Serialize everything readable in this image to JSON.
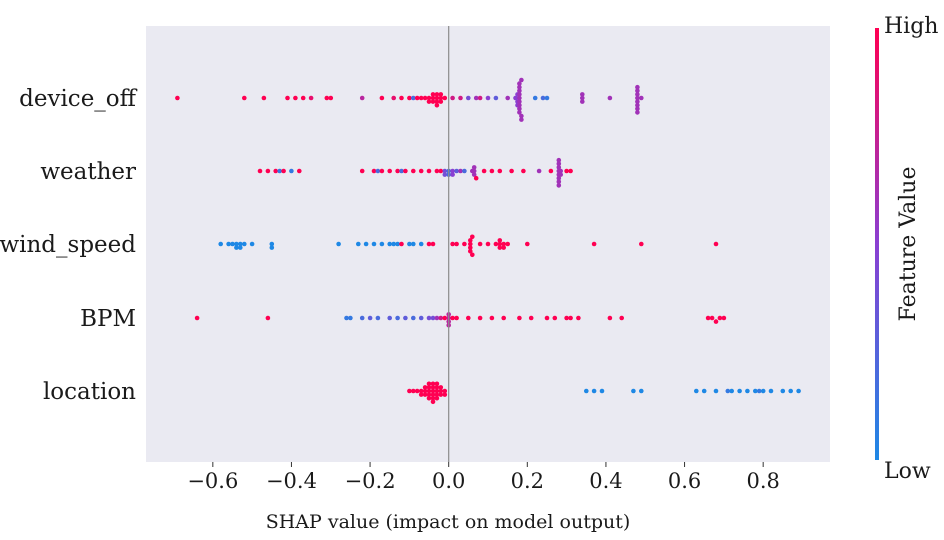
{
  "chart_data": {
    "type": "scatter",
    "subtype": "shap-beeswarm",
    "title": "",
    "xlabel": "SHAP value (impact on model output)",
    "ylabel": "",
    "xlim": [
      -0.77,
      0.97
    ],
    "xticks": [
      -0.6,
      -0.4,
      -0.2,
      0.0,
      0.2,
      0.4,
      0.6,
      0.8
    ],
    "xtick_labels": [
      "−0.6",
      "−0.4",
      "−0.2",
      "0.0",
      "0.2",
      "0.4",
      "0.6",
      "0.8"
    ],
    "features": [
      "device_off",
      "weather",
      "wind_speed",
      "BPM",
      "location"
    ],
    "feature_labels": [
      "device_off",
      "weather",
      "wind_speed",
      "BPM",
      "location"
    ],
    "zero_line": 0.0,
    "grid": false,
    "background": "#eaeaf2",
    "colors": {
      "low": "#1e88e5",
      "high": "#ff0052",
      "mid": "#8a3fd2",
      "zero_line": "#8c8c8c"
    },
    "colorbar": {
      "label": "Feature Value",
      "high_label": "High",
      "low_label": "Low",
      "position": "right"
    },
    "series": [
      {
        "feature": "device_off",
        "points": [
          {
            "x": -0.69,
            "v": 1
          },
          {
            "x": -0.52,
            "v": 1
          },
          {
            "x": -0.47,
            "v": 1
          },
          {
            "x": -0.41,
            "v": 1
          },
          {
            "x": -0.39,
            "v": 1
          },
          {
            "x": -0.37,
            "v": 1
          },
          {
            "x": -0.35,
            "v": 0.9
          },
          {
            "x": -0.31,
            "v": 1
          },
          {
            "x": -0.3,
            "v": 1
          },
          {
            "x": -0.22,
            "v": 0.7
          },
          {
            "x": -0.17,
            "v": 1
          },
          {
            "x": -0.14,
            "v": 0.9
          },
          {
            "x": -0.12,
            "v": 1
          },
          {
            "x": -0.1,
            "v": 1
          },
          {
            "x": -0.09,
            "v": 0.2
          },
          {
            "x": -0.08,
            "v": 1
          },
          {
            "x": -0.07,
            "v": 1
          },
          {
            "x": -0.06,
            "v": 1
          },
          {
            "x": -0.05,
            "v": 1
          },
          {
            "x": -0.05,
            "v": 1
          },
          {
            "x": -0.04,
            "v": 1
          },
          {
            "x": -0.04,
            "v": 1
          },
          {
            "x": -0.04,
            "v": 1
          },
          {
            "x": -0.03,
            "v": 1
          },
          {
            "x": -0.03,
            "v": 1
          },
          {
            "x": -0.03,
            "v": 1
          },
          {
            "x": -0.03,
            "v": 1
          },
          {
            "x": -0.02,
            "v": 1
          },
          {
            "x": -0.02,
            "v": 1
          },
          {
            "x": -0.02,
            "v": 1
          },
          {
            "x": -0.01,
            "v": 1
          },
          {
            "x": 0.01,
            "v": 0.8
          },
          {
            "x": 0.03,
            "v": 0.8
          },
          {
            "x": 0.05,
            "v": 0.4
          },
          {
            "x": 0.07,
            "v": 0.6
          },
          {
            "x": 0.08,
            "v": 0.8
          },
          {
            "x": 0.1,
            "v": 0.5
          },
          {
            "x": 0.12,
            "v": 0.3
          },
          {
            "x": 0.15,
            "v": 0.6
          },
          {
            "x": 0.17,
            "v": 0.5
          },
          {
            "x": 0.175,
            "v": 0.5
          },
          {
            "x": 0.175,
            "v": 0.5
          },
          {
            "x": 0.175,
            "v": 0.5
          },
          {
            "x": 0.18,
            "v": 0.6
          },
          {
            "x": 0.18,
            "v": 0.6
          },
          {
            "x": 0.18,
            "v": 0.6
          },
          {
            "x": 0.18,
            "v": 0.6
          },
          {
            "x": 0.18,
            "v": 0.6
          },
          {
            "x": 0.18,
            "v": 0.6
          },
          {
            "x": 0.18,
            "v": 0.6
          },
          {
            "x": 0.18,
            "v": 0.6
          },
          {
            "x": 0.18,
            "v": 0.6
          },
          {
            "x": 0.185,
            "v": 0.6
          },
          {
            "x": 0.185,
            "v": 0.6
          },
          {
            "x": 0.185,
            "v": 0.6
          },
          {
            "x": 0.22,
            "v": 0.1
          },
          {
            "x": 0.24,
            "v": 0.2
          },
          {
            "x": 0.25,
            "v": 0.1
          },
          {
            "x": 0.34,
            "v": 0.6
          },
          {
            "x": 0.34,
            "v": 0.6
          },
          {
            "x": 0.34,
            "v": 0.6
          },
          {
            "x": 0.41,
            "v": 0.6
          },
          {
            "x": 0.48,
            "v": 0.6
          },
          {
            "x": 0.48,
            "v": 0.6
          },
          {
            "x": 0.48,
            "v": 0.6
          },
          {
            "x": 0.48,
            "v": 0.6
          },
          {
            "x": 0.48,
            "v": 0.6
          },
          {
            "x": 0.48,
            "v": 0.6
          },
          {
            "x": 0.48,
            "v": 0.6
          },
          {
            "x": 0.48,
            "v": 0.6
          },
          {
            "x": 0.49,
            "v": 0.6
          }
        ]
      },
      {
        "feature": "weather",
        "points": [
          {
            "x": -0.48,
            "v": 1
          },
          {
            "x": -0.46,
            "v": 1
          },
          {
            "x": -0.44,
            "v": 1
          },
          {
            "x": -0.43,
            "v": 0.1
          },
          {
            "x": -0.42,
            "v": 1
          },
          {
            "x": -0.4,
            "v": 0.1
          },
          {
            "x": -0.38,
            "v": 1
          },
          {
            "x": -0.22,
            "v": 1
          },
          {
            "x": -0.19,
            "v": 1
          },
          {
            "x": -0.18,
            "v": 0.2
          },
          {
            "x": -0.17,
            "v": 1
          },
          {
            "x": -0.15,
            "v": 1
          },
          {
            "x": -0.13,
            "v": 1
          },
          {
            "x": -0.12,
            "v": 0.2
          },
          {
            "x": -0.11,
            "v": 1
          },
          {
            "x": -0.09,
            "v": 1
          },
          {
            "x": -0.07,
            "v": 1
          },
          {
            "x": -0.05,
            "v": 1
          },
          {
            "x": -0.03,
            "v": 1
          },
          {
            "x": -0.02,
            "v": 1
          },
          {
            "x": -0.01,
            "v": 0.4
          },
          {
            "x": -0.01,
            "v": 0.4
          },
          {
            "x": 0.0,
            "v": 0.2
          },
          {
            "x": 0.0,
            "v": 0.2
          },
          {
            "x": 0.01,
            "v": 0.5
          },
          {
            "x": 0.01,
            "v": 0.5
          },
          {
            "x": 0.02,
            "v": 0.3
          },
          {
            "x": 0.03,
            "v": 0.6
          },
          {
            "x": 0.04,
            "v": 0.2
          },
          {
            "x": 0.06,
            "v": 0.6
          },
          {
            "x": 0.065,
            "v": 0.6
          },
          {
            "x": 0.065,
            "v": 0.6
          },
          {
            "x": 0.065,
            "v": 0.6
          },
          {
            "x": 0.07,
            "v": 1
          },
          {
            "x": 0.09,
            "v": 1
          },
          {
            "x": 0.11,
            "v": 1
          },
          {
            "x": 0.13,
            "v": 1
          },
          {
            "x": 0.16,
            "v": 1
          },
          {
            "x": 0.19,
            "v": 1
          },
          {
            "x": 0.23,
            "v": 0.6
          },
          {
            "x": 0.26,
            "v": 1
          },
          {
            "x": 0.28,
            "v": 0.6
          },
          {
            "x": 0.28,
            "v": 0.6
          },
          {
            "x": 0.28,
            "v": 0.6
          },
          {
            "x": 0.28,
            "v": 0.6
          },
          {
            "x": 0.28,
            "v": 0.6
          },
          {
            "x": 0.28,
            "v": 0.6
          },
          {
            "x": 0.28,
            "v": 0.6
          },
          {
            "x": 0.28,
            "v": 0.6
          },
          {
            "x": 0.285,
            "v": 0.6
          },
          {
            "x": 0.285,
            "v": 0.6
          },
          {
            "x": 0.3,
            "v": 1
          },
          {
            "x": 0.31,
            "v": 1
          }
        ]
      },
      {
        "feature": "wind_speed",
        "points": [
          {
            "x": -0.58,
            "v": 0
          },
          {
            "x": -0.56,
            "v": 0
          },
          {
            "x": -0.55,
            "v": 0
          },
          {
            "x": -0.54,
            "v": 0
          },
          {
            "x": -0.54,
            "v": 0
          },
          {
            "x": -0.53,
            "v": 0
          },
          {
            "x": -0.53,
            "v": 0
          },
          {
            "x": -0.52,
            "v": 0
          },
          {
            "x": -0.5,
            "v": 0
          },
          {
            "x": -0.45,
            "v": 0
          },
          {
            "x": -0.45,
            "v": 0
          },
          {
            "x": -0.28,
            "v": 0
          },
          {
            "x": -0.23,
            "v": 0
          },
          {
            "x": -0.21,
            "v": 0
          },
          {
            "x": -0.19,
            "v": 0
          },
          {
            "x": -0.17,
            "v": 0
          },
          {
            "x": -0.15,
            "v": 0
          },
          {
            "x": -0.14,
            "v": 0
          },
          {
            "x": -0.13,
            "v": 0
          },
          {
            "x": -0.12,
            "v": 1
          },
          {
            "x": -0.1,
            "v": 0
          },
          {
            "x": -0.09,
            "v": 0
          },
          {
            "x": -0.07,
            "v": 0
          },
          {
            "x": -0.05,
            "v": 1
          },
          {
            "x": -0.04,
            "v": 1
          },
          {
            "x": 0.01,
            "v": 1
          },
          {
            "x": 0.02,
            "v": 1
          },
          {
            "x": 0.04,
            "v": 1
          },
          {
            "x": 0.055,
            "v": 1
          },
          {
            "x": 0.055,
            "v": 1
          },
          {
            "x": 0.055,
            "v": 1
          },
          {
            "x": 0.055,
            "v": 1
          },
          {
            "x": 0.06,
            "v": 1
          },
          {
            "x": 0.06,
            "v": 1
          },
          {
            "x": 0.08,
            "v": 1
          },
          {
            "x": 0.1,
            "v": 1
          },
          {
            "x": 0.12,
            "v": 1
          },
          {
            "x": 0.13,
            "v": 1
          },
          {
            "x": 0.13,
            "v": 1
          },
          {
            "x": 0.13,
            "v": 1
          },
          {
            "x": 0.14,
            "v": 1
          },
          {
            "x": 0.14,
            "v": 1
          },
          {
            "x": 0.15,
            "v": 1
          },
          {
            "x": 0.2,
            "v": 1
          },
          {
            "x": 0.37,
            "v": 1
          },
          {
            "x": 0.49,
            "v": 1
          },
          {
            "x": 0.68,
            "v": 1
          }
        ]
      },
      {
        "feature": "BPM",
        "points": [
          {
            "x": -0.64,
            "v": 1
          },
          {
            "x": -0.46,
            "v": 1
          },
          {
            "x": -0.26,
            "v": 0.1
          },
          {
            "x": -0.25,
            "v": 0.1
          },
          {
            "x": -0.22,
            "v": 0.2
          },
          {
            "x": -0.2,
            "v": 0.3
          },
          {
            "x": -0.18,
            "v": 0.2
          },
          {
            "x": -0.15,
            "v": 0.3
          },
          {
            "x": -0.13,
            "v": 0.2
          },
          {
            "x": -0.11,
            "v": 0.3
          },
          {
            "x": -0.09,
            "v": 0.2
          },
          {
            "x": -0.07,
            "v": 0.3
          },
          {
            "x": -0.05,
            "v": 0.4
          },
          {
            "x": -0.04,
            "v": 0.4
          },
          {
            "x": -0.03,
            "v": 0.6
          },
          {
            "x": -0.02,
            "v": 0.8
          },
          {
            "x": -0.01,
            "v": 1
          },
          {
            "x": 0.0,
            "v": 0.7
          },
          {
            "x": 0.0,
            "v": 0.7
          },
          {
            "x": 0.0,
            "v": 0.7
          },
          {
            "x": 0.0,
            "v": 0.7
          },
          {
            "x": 0.01,
            "v": 1
          },
          {
            "x": 0.02,
            "v": 1
          },
          {
            "x": 0.05,
            "v": 1
          },
          {
            "x": 0.08,
            "v": 1
          },
          {
            "x": 0.11,
            "v": 1
          },
          {
            "x": 0.14,
            "v": 1
          },
          {
            "x": 0.18,
            "v": 1
          },
          {
            "x": 0.21,
            "v": 1
          },
          {
            "x": 0.25,
            "v": 1
          },
          {
            "x": 0.27,
            "v": 1
          },
          {
            "x": 0.3,
            "v": 1
          },
          {
            "x": 0.31,
            "v": 1
          },
          {
            "x": 0.33,
            "v": 1
          },
          {
            "x": 0.41,
            "v": 1
          },
          {
            "x": 0.44,
            "v": 1
          },
          {
            "x": 0.66,
            "v": 1
          },
          {
            "x": 0.67,
            "v": 1
          },
          {
            "x": 0.68,
            "v": 1
          },
          {
            "x": 0.69,
            "v": 1
          },
          {
            "x": 0.7,
            "v": 1
          }
        ]
      },
      {
        "feature": "location",
        "points": [
          {
            "x": -0.1,
            "v": 1
          },
          {
            "x": -0.09,
            "v": 1
          },
          {
            "x": -0.08,
            "v": 1
          },
          {
            "x": -0.07,
            "v": 1
          },
          {
            "x": -0.07,
            "v": 1
          },
          {
            "x": -0.06,
            "v": 1
          },
          {
            "x": -0.06,
            "v": 1
          },
          {
            "x": -0.06,
            "v": 1
          },
          {
            "x": -0.05,
            "v": 1
          },
          {
            "x": -0.05,
            "v": 1
          },
          {
            "x": -0.05,
            "v": 1
          },
          {
            "x": -0.05,
            "v": 1
          },
          {
            "x": -0.05,
            "v": 1
          },
          {
            "x": -0.04,
            "v": 1
          },
          {
            "x": -0.04,
            "v": 1
          },
          {
            "x": -0.04,
            "v": 1
          },
          {
            "x": -0.04,
            "v": 1
          },
          {
            "x": -0.04,
            "v": 1
          },
          {
            "x": -0.04,
            "v": 1
          },
          {
            "x": -0.03,
            "v": 1
          },
          {
            "x": -0.03,
            "v": 1
          },
          {
            "x": -0.03,
            "v": 1
          },
          {
            "x": -0.03,
            "v": 1
          },
          {
            "x": -0.03,
            "v": 1
          },
          {
            "x": -0.02,
            "v": 1
          },
          {
            "x": -0.02,
            "v": 1
          },
          {
            "x": -0.02,
            "v": 1
          },
          {
            "x": -0.01,
            "v": 1
          },
          {
            "x": -0.01,
            "v": 1
          },
          {
            "x": 0.35,
            "v": 0
          },
          {
            "x": 0.37,
            "v": 0
          },
          {
            "x": 0.39,
            "v": 0
          },
          {
            "x": 0.47,
            "v": 0
          },
          {
            "x": 0.49,
            "v": 0
          },
          {
            "x": 0.63,
            "v": 0
          },
          {
            "x": 0.65,
            "v": 0
          },
          {
            "x": 0.68,
            "v": 0
          },
          {
            "x": 0.71,
            "v": 0.1
          },
          {
            "x": 0.72,
            "v": 0
          },
          {
            "x": 0.74,
            "v": 0
          },
          {
            "x": 0.76,
            "v": 0
          },
          {
            "x": 0.78,
            "v": 0
          },
          {
            "x": 0.79,
            "v": 0.1
          },
          {
            "x": 0.8,
            "v": 0
          },
          {
            "x": 0.82,
            "v": 0
          },
          {
            "x": 0.85,
            "v": 0
          },
          {
            "x": 0.87,
            "v": 0
          },
          {
            "x": 0.89,
            "v": 0
          }
        ]
      }
    ]
  }
}
